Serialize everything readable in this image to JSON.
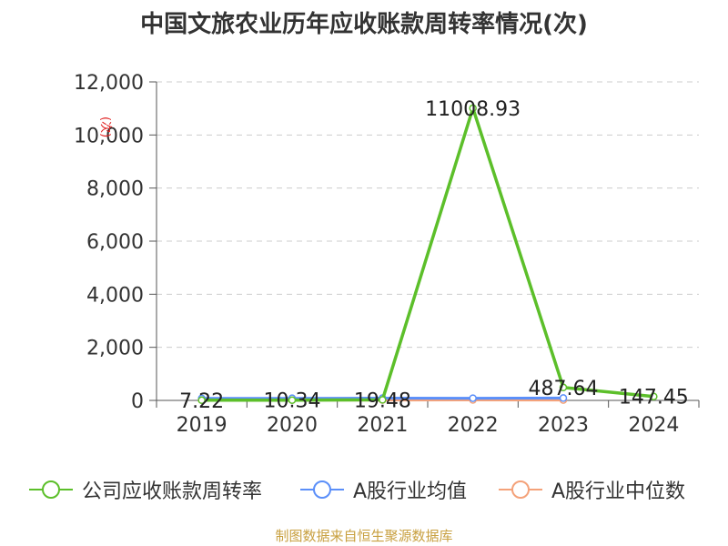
{
  "title": "中国文旅农业历年应收账款周转率情况(次)",
  "source_note": "制图数据来自恒生聚源数据库",
  "chart_data": {
    "type": "line",
    "title": "中国文旅农业历年应收账款周转率情况(次)",
    "xlabel": "",
    "ylabel": "(次)",
    "categories": [
      "2019",
      "2020",
      "2021",
      "2022",
      "2023",
      "2024"
    ],
    "ylim": [
      0,
      12000
    ],
    "yticks": [
      0,
      2000,
      4000,
      6000,
      8000,
      10000,
      12000
    ],
    "ytick_labels": [
      "0",
      "2,000",
      "4,000",
      "6,000",
      "8,000",
      "10,000",
      "12,000"
    ],
    "grid": true,
    "legend_position": "bottom",
    "series": [
      {
        "name": "公司应收账款周转率",
        "color": "#5cbf2a",
        "values": [
          7.22,
          10.34,
          19.48,
          11008.93,
          487.64,
          147.45
        ],
        "labels": [
          "7.22",
          "10.34",
          "19.48",
          "11008.93",
          "487.64",
          "147.45"
        ]
      },
      {
        "name": "A股行业均值",
        "color": "#5b8ff9",
        "values": [
          75,
          80,
          85,
          82,
          88,
          null
        ],
        "labels": []
      },
      {
        "name": "A股行业中位数",
        "color": "#f4a27a",
        "values": [
          12,
          13,
          14,
          16,
          15,
          null
        ],
        "labels": []
      }
    ]
  }
}
